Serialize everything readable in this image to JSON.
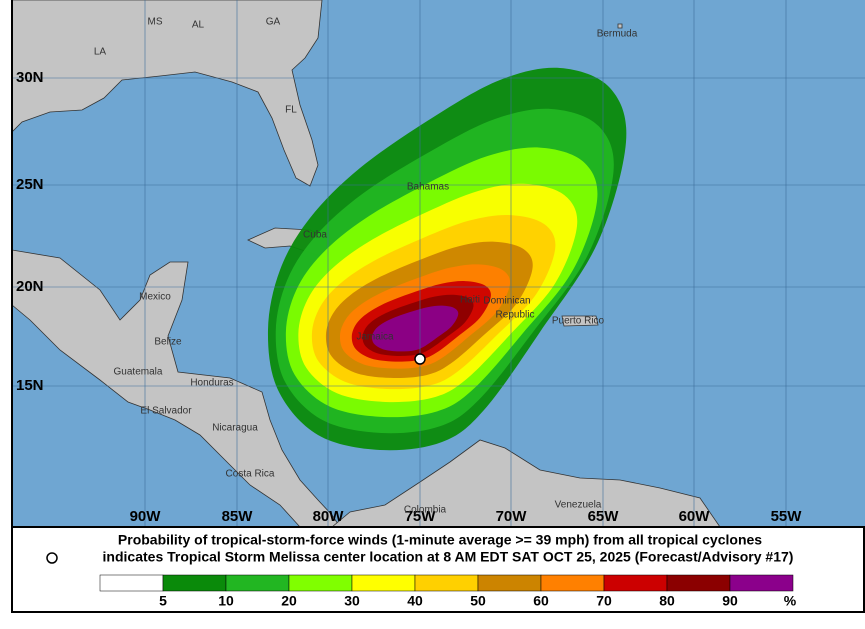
{
  "map": {
    "latitude_labels": [
      "30N",
      "25N",
      "20N",
      "15N"
    ],
    "longitude_labels": [
      "90W",
      "85W",
      "80W",
      "75W",
      "70W",
      "65W",
      "60W",
      "55W"
    ],
    "place_labels": [
      "MS",
      "AL",
      "GA",
      "LA",
      "FL",
      "Bermuda",
      "Bahamas",
      "Cuba",
      "Mexico",
      "Belize",
      "Jamaica",
      "Haiti",
      "Dominican",
      "Republic",
      "Puerto Rico",
      "Guatemala",
      "Honduras",
      "El Salvador",
      "Nicaragua",
      "Costa Rica",
      "Colombia",
      "Venezuela"
    ]
  },
  "caption": {
    "line1": "Probability of tropical-storm-force winds (1-minute average >= 39 mph) from all tropical cyclones",
    "line2": "indicates Tropical Storm Melissa center location at 8 AM EDT SAT OCT 25, 2025 (Forecast/Advisory #17)"
  },
  "legend": {
    "colors": [
      "#ffffff",
      "#0a8a0a",
      "#22b622",
      "#80ff00",
      "#ffff00",
      "#ffd000",
      "#cc8400",
      "#ff8000",
      "#cc0000",
      "#8b0000",
      "#8b008b"
    ],
    "ticks": [
      5,
      10,
      20,
      30,
      40,
      50,
      60,
      70,
      80,
      90
    ],
    "unit": "%"
  }
}
